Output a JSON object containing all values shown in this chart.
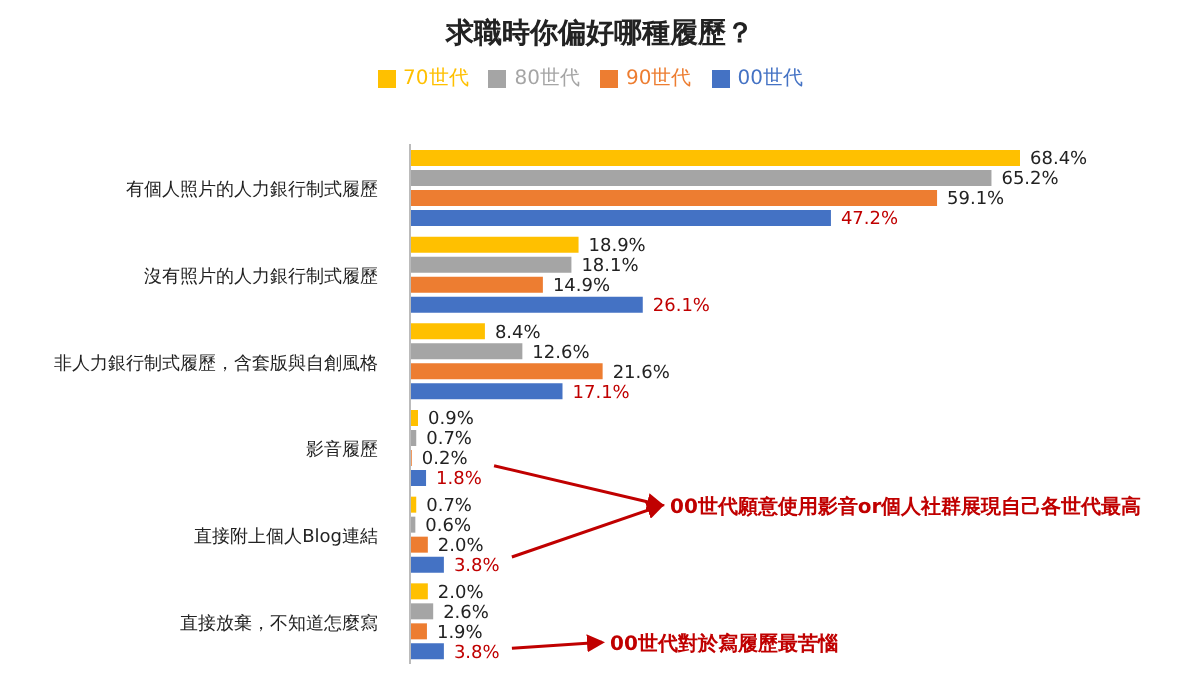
{
  "chart_data": {
    "type": "bar",
    "orientation": "horizontal",
    "title": "求職時你偏好哪種履歷？",
    "categories": [
      "有個人照片的人力銀行制式履歷",
      "沒有照片的人力銀行制式履歷",
      "非人力銀行制式履歷，含套版與自創風格",
      "影音履歷",
      "直接附上個人Blog連結",
      "直接放棄，不知道怎麼寫"
    ],
    "series": [
      {
        "name": "70世代",
        "color": "#ffc000",
        "values": [
          68.4,
          18.9,
          8.4,
          0.9,
          0.7,
          2.0
        ],
        "value_labels": [
          "68.4%",
          "18.9%",
          "8.4%",
          "0.9%",
          "0.7%",
          "2.0%"
        ]
      },
      {
        "name": "80世代",
        "color": "#a5a5a5",
        "values": [
          65.2,
          18.1,
          12.6,
          0.7,
          0.6,
          2.6
        ],
        "value_labels": [
          "65.2%",
          "18.1%",
          "12.6%",
          "0.7%",
          "0.6%",
          "2.6%"
        ]
      },
      {
        "name": "90世代",
        "color": "#ed7d31",
        "values": [
          59.1,
          14.9,
          21.6,
          0.2,
          2.0,
          1.9
        ],
        "value_labels": [
          "59.1%",
          "14.9%",
          "21.6%",
          "0.2%",
          "2.0%",
          "1.9%"
        ]
      },
      {
        "name": "00世代",
        "color": "#4472c4",
        "values": [
          47.2,
          26.1,
          17.1,
          1.8,
          3.8,
          3.8
        ],
        "value_labels": [
          "47.2%",
          "26.1%",
          "17.1%",
          "1.8%",
          "3.8%",
          "3.8%"
        ]
      }
    ],
    "annotations": [
      "00世代願意使用影音or個人社群展現自己各世代最高",
      "00世代對於寫履歷最苦惱"
    ],
    "legend": "top",
    "grid": false
  }
}
